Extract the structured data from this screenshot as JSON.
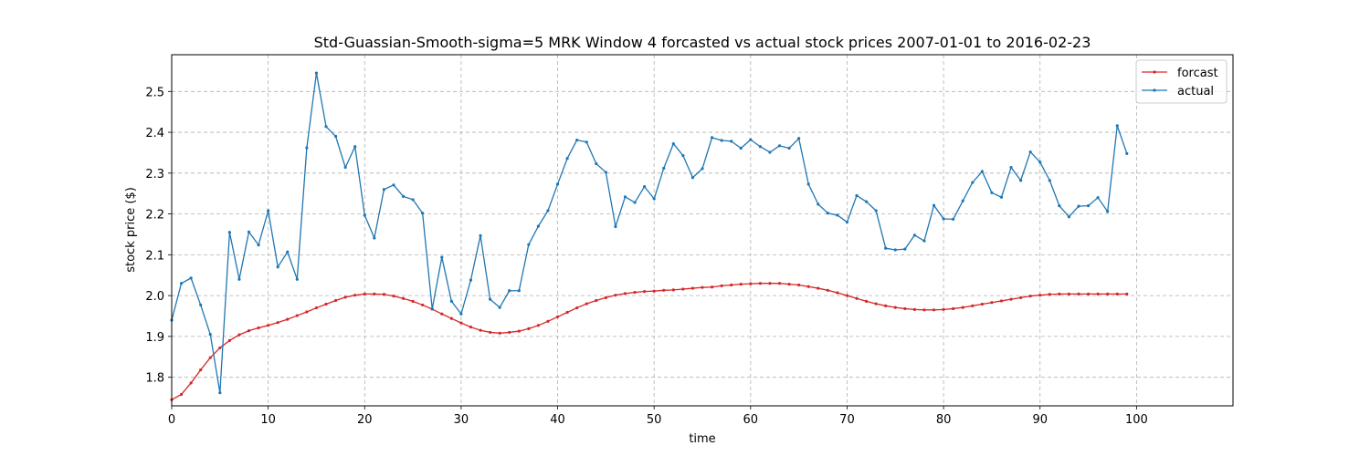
{
  "chart_data": {
    "type": "line",
    "title": "Std-Guassian-Smooth-sigma=5 MRK Window 4 forcasted vs actual stock prices 2007-01-01 to 2016-02-23",
    "xlabel": "time",
    "ylabel": "stock price ($)",
    "xlim": [
      0,
      110
    ],
    "ylim": [
      1.73,
      2.59
    ],
    "x_ticks": [
      0,
      10,
      20,
      30,
      40,
      50,
      60,
      70,
      80,
      90,
      100
    ],
    "y_ticks": [
      1.8,
      1.9,
      2.0,
      2.1,
      2.2,
      2.3,
      2.4,
      2.5
    ],
    "x_tick_labels": [
      "0",
      "10",
      "20",
      "30",
      "40",
      "50",
      "60",
      "70",
      "80",
      "90",
      "100"
    ],
    "y_tick_labels": [
      "1.8",
      "1.9",
      "2.0",
      "2.1",
      "2.2",
      "2.3",
      "2.4",
      "2.5"
    ],
    "grid": true,
    "legend_position": "top-right",
    "series": [
      {
        "name": "forcast",
        "color": "#d62728",
        "x": [
          0,
          1,
          2,
          3,
          4,
          5,
          6,
          7,
          8,
          9,
          10,
          11,
          12,
          13,
          14,
          15,
          16,
          17,
          18,
          19,
          20,
          21,
          22,
          23,
          24,
          25,
          26,
          27,
          28,
          29,
          30,
          31,
          32,
          33,
          34,
          35,
          36,
          37,
          38,
          39,
          40,
          41,
          42,
          43,
          44,
          45,
          46,
          47,
          48,
          49,
          50,
          51,
          52,
          53,
          54,
          55,
          56,
          57,
          58,
          59,
          60,
          61,
          62,
          63,
          64,
          65,
          66,
          67,
          68,
          69,
          70,
          71,
          72,
          73,
          74,
          75,
          76,
          77,
          78,
          79,
          80,
          81,
          82,
          83,
          84,
          85,
          86,
          87,
          88,
          89,
          90,
          91,
          92,
          93,
          94,
          95,
          96,
          97,
          98,
          99
        ],
        "values": [
          1.745,
          1.758,
          1.786,
          1.818,
          1.848,
          1.872,
          1.89,
          1.904,
          1.914,
          1.921,
          1.927,
          1.934,
          1.942,
          1.951,
          1.96,
          1.97,
          1.979,
          1.988,
          1.996,
          2.001,
          2.004,
          2.004,
          2.003,
          1.999,
          1.993,
          1.986,
          1.977,
          1.967,
          1.955,
          1.944,
          1.933,
          1.923,
          1.915,
          1.91,
          1.908,
          1.91,
          1.913,
          1.919,
          1.927,
          1.937,
          1.948,
          1.959,
          1.97,
          1.98,
          1.988,
          1.995,
          2.001,
          2.005,
          2.008,
          2.01,
          2.011,
          2.013,
          2.014,
          2.016,
          2.018,
          2.02,
          2.021,
          2.024,
          2.026,
          2.028,
          2.029,
          2.03,
          2.03,
          2.03,
          2.028,
          2.026,
          2.022,
          2.018,
          2.013,
          2.007,
          2.0,
          1.993,
          1.986,
          1.98,
          1.975,
          1.971,
          1.968,
          1.966,
          1.965,
          1.965,
          1.966,
          1.968,
          1.971,
          1.975,
          1.979,
          1.983,
          1.987,
          1.991,
          1.995,
          1.999,
          2.001,
          2.003,
          2.004,
          2.004,
          2.004,
          2.004,
          2.004,
          2.004,
          2.004,
          2.004
        ]
      },
      {
        "name": "actual",
        "color": "#1f77b4",
        "x": [
          0,
          1,
          2,
          3,
          4,
          5,
          6,
          7,
          8,
          9,
          10,
          11,
          12,
          13,
          14,
          15,
          16,
          17,
          18,
          19,
          20,
          21,
          22,
          23,
          24,
          25,
          26,
          27,
          28,
          29,
          30,
          31,
          32,
          33,
          34,
          35,
          36,
          37,
          38,
          39,
          40,
          41,
          42,
          43,
          44,
          45,
          46,
          47,
          48,
          49,
          50,
          51,
          52,
          53,
          54,
          55,
          56,
          57,
          58,
          59,
          60,
          61,
          62,
          63,
          64,
          65,
          66,
          67,
          68,
          69,
          70,
          71,
          72,
          73,
          74,
          75,
          76,
          77,
          78,
          79,
          80,
          81,
          82,
          83,
          84,
          85,
          86,
          87,
          88,
          89,
          90,
          91,
          92,
          93,
          94,
          95,
          96,
          97,
          98,
          99
        ],
        "values": [
          1.94,
          2.03,
          2.043,
          1.977,
          1.905,
          1.762,
          2.155,
          2.04,
          2.156,
          2.124,
          2.208,
          2.07,
          2.107,
          2.04,
          2.362,
          2.545,
          2.414,
          2.39,
          2.314,
          2.365,
          2.197,
          2.141,
          2.26,
          2.271,
          2.243,
          2.235,
          2.202,
          1.967,
          2.094,
          1.986,
          1.955,
          2.038,
          2.147,
          1.991,
          1.971,
          2.012,
          2.012,
          2.125,
          2.17,
          2.208,
          2.273,
          2.336,
          2.381,
          2.376,
          2.323,
          2.302,
          2.169,
          2.242,
          2.228,
          2.267,
          2.237,
          2.312,
          2.372,
          2.343,
          2.289,
          2.311,
          2.387,
          2.38,
          2.378,
          2.361,
          2.382,
          2.365,
          2.351,
          2.367,
          2.361,
          2.385,
          2.273,
          2.224,
          2.202,
          2.197,
          2.18,
          2.245,
          2.23,
          2.208,
          2.116,
          2.112,
          2.114,
          2.148,
          2.134,
          2.221,
          2.188,
          2.187,
          2.232,
          2.277,
          2.304,
          2.252,
          2.241,
          2.314,
          2.282,
          2.352,
          2.327,
          2.282,
          2.22,
          2.193,
          2.219,
          2.22,
          2.24,
          2.206,
          2.416,
          2.348
        ]
      }
    ]
  }
}
